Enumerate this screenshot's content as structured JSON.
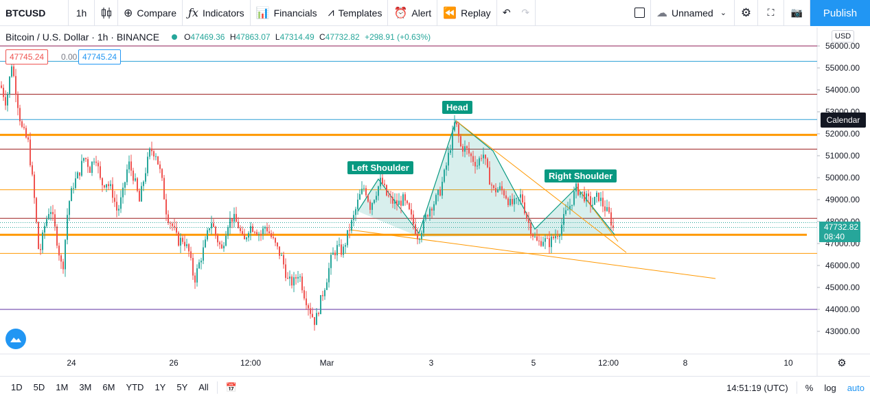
{
  "toolbar": {
    "symbol": "BTCUSD",
    "interval": "1h",
    "compare": "Compare",
    "indicators": "Indicators",
    "financials": "Financials",
    "templates": "Templates",
    "alert": "Alert",
    "replay": "Replay",
    "layout_name": "Unnamed",
    "publish": "Publish"
  },
  "legend": {
    "title": "Bitcoin / U.S. Dollar · 1h · BINANCE",
    "open_label": "O",
    "open": "47469.36",
    "high_label": "H",
    "high": "47863.07",
    "low_label": "L",
    "low": "47314.49",
    "close_label": "C",
    "close": "47732.82",
    "change": "+298.91 (+0.63%)"
  },
  "trade": {
    "sell": "47745.24",
    "spread": "0.00",
    "buy": "47745.24"
  },
  "currency": "USD",
  "calendar_tag": "Calendar",
  "last_price": {
    "price": "47732.82",
    "countdown": "08:40"
  },
  "pattern_labels": {
    "left": "Left Shoulder",
    "head": "Head",
    "right": "Right Shoulder"
  },
  "price_axis": [
    "56000.00",
    "55000.00",
    "54000.00",
    "53000.00",
    "52000.00",
    "51000.00",
    "50000.00",
    "49000.00",
    "48000.00",
    "47000.00",
    "46000.00",
    "45000.00",
    "44000.00",
    "43000.00"
  ],
  "time_axis": [
    "24",
    "26",
    "12:00",
    "Mar",
    "3",
    "5",
    "12:00",
    "8",
    "10"
  ],
  "bottom": {
    "timeframes": [
      "1D",
      "5D",
      "1M",
      "3M",
      "6M",
      "YTD",
      "1Y",
      "5Y",
      "All"
    ],
    "clock": "14:51:19 (UTC)",
    "percent": "%",
    "log": "log",
    "auto": "auto"
  },
  "colors": {
    "up": "#26a69a",
    "down": "#ef5350",
    "accent": "#2196f3",
    "orange": "#ff9800"
  },
  "chart_data": {
    "type": "candlestick",
    "symbol": "BTCUSD",
    "interval": "1h",
    "exchange": "BINANCE",
    "ylim": [
      42800,
      56400
    ],
    "close_path": [
      [
        0,
        54200
      ],
      [
        8,
        53400
      ],
      [
        16,
        55200
      ],
      [
        22,
        54000
      ],
      [
        30,
        52300
      ],
      [
        40,
        51600
      ],
      [
        48,
        49400
      ],
      [
        56,
        46400
      ],
      [
        64,
        47800
      ],
      [
        72,
        48700
      ],
      [
        80,
        47500
      ],
      [
        90,
        45700
      ],
      [
        98,
        48700
      ],
      [
        106,
        49700
      ],
      [
        114,
        50200
      ],
      [
        122,
        51000
      ],
      [
        130,
        50400
      ],
      [
        138,
        51100
      ],
      [
        146,
        49700
      ],
      [
        154,
        49800
      ],
      [
        162,
        49400
      ],
      [
        170,
        48400
      ],
      [
        178,
        49300
      ],
      [
        186,
        50700
      ],
      [
        194,
        50000
      ],
      [
        202,
        48900
      ],
      [
        210,
        50200
      ],
      [
        218,
        51300
      ],
      [
        226,
        51100
      ],
      [
        234,
        50000
      ],
      [
        242,
        48300
      ],
      [
        250,
        47800
      ],
      [
        258,
        47100
      ],
      [
        266,
        47200
      ],
      [
        274,
        46600
      ],
      [
        282,
        45300
      ],
      [
        290,
        46200
      ],
      [
        298,
        47000
      ],
      [
        306,
        48100
      ],
      [
        314,
        47300
      ],
      [
        322,
        46700
      ],
      [
        330,
        47900
      ],
      [
        338,
        48200
      ],
      [
        346,
        47800
      ],
      [
        354,
        47000
      ],
      [
        362,
        47800
      ],
      [
        370,
        47700
      ],
      [
        378,
        47400
      ],
      [
        386,
        47800
      ],
      [
        394,
        47300
      ],
      [
        402,
        46800
      ],
      [
        410,
        46300
      ],
      [
        418,
        45300
      ],
      [
        426,
        45200
      ],
      [
        434,
        45700
      ],
      [
        442,
        44700
      ],
      [
        450,
        44000
      ],
      [
        458,
        43400
      ],
      [
        466,
        44400
      ],
      [
        474,
        45300
      ],
      [
        482,
        46400
      ],
      [
        490,
        46800
      ],
      [
        498,
        46600
      ],
      [
        506,
        47500
      ],
      [
        514,
        48200
      ],
      [
        522,
        49100
      ],
      [
        530,
        49600
      ],
      [
        538,
        48700
      ],
      [
        546,
        49300
      ],
      [
        554,
        49900
      ],
      [
        562,
        49200
      ],
      [
        570,
        48900
      ],
      [
        578,
        48800
      ],
      [
        586,
        49000
      ],
      [
        594,
        48500
      ],
      [
        602,
        47800
      ],
      [
        608,
        47300
      ],
      [
        616,
        47900
      ],
      [
        624,
        48600
      ],
      [
        632,
        48900
      ],
      [
        640,
        49400
      ],
      [
        648,
        50400
      ],
      [
        656,
        51600
      ],
      [
        662,
        52600
      ],
      [
        670,
        51400
      ],
      [
        678,
        51300
      ],
      [
        686,
        50900
      ],
      [
        694,
        50600
      ],
      [
        702,
        51200
      ],
      [
        710,
        50100
      ],
      [
        718,
        49400
      ],
      [
        726,
        49500
      ],
      [
        734,
        49300
      ],
      [
        742,
        48800
      ],
      [
        750,
        48800
      ],
      [
        758,
        49200
      ],
      [
        766,
        48200
      ],
      [
        774,
        47500
      ],
      [
        782,
        47000
      ],
      [
        790,
        47200
      ],
      [
        798,
        47000
      ],
      [
        806,
        47300
      ],
      [
        814,
        47600
      ],
      [
        822,
        48300
      ],
      [
        830,
        48800
      ],
      [
        838,
        49500
      ],
      [
        846,
        49300
      ],
      [
        854,
        49000
      ],
      [
        862,
        48800
      ],
      [
        870,
        49200
      ],
      [
        878,
        48700
      ],
      [
        886,
        48300
      ],
      [
        892,
        47700
      ]
    ],
    "horizontal_levels": [
      {
        "price": 56000,
        "color": "#8e1b55"
      },
      {
        "price": 55300,
        "color": "#2a9fd6"
      },
      {
        "price": 53800,
        "color": "#9c1c1c"
      },
      {
        "price": 52650,
        "color": "#2a9fd6"
      },
      {
        "price": 51950,
        "color": "#ff9800"
      },
      {
        "price": 51300,
        "color": "#9c1c1c"
      },
      {
        "price": 49450,
        "color": "#ff9800"
      },
      {
        "price": 48150,
        "color": "#9c1c1c"
      },
      {
        "price": 47400,
        "color": "#ff9800"
      },
      {
        "price": 46550,
        "color": "#ff9800"
      },
      {
        "price": 44000,
        "color": "#5b2ca0"
      }
    ],
    "last_price": 47732.82
  }
}
